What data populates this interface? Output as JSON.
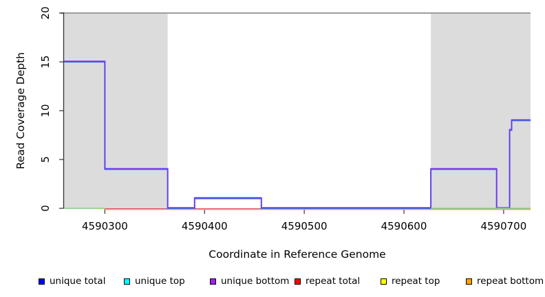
{
  "title_labels": {
    "y_axis": "Read Coverage Depth",
    "x_axis": "Coordinate in Reference Genome"
  },
  "chart_data": {
    "type": "line",
    "subtype": "step-coverage",
    "title": "",
    "xlabel": "Coordinate in Reference Genome",
    "ylabel": "Read Coverage Depth",
    "xlim": [
      4590259,
      4590727
    ],
    "ylim": [
      0,
      20
    ],
    "x_ticks": [
      4590300,
      4590400,
      4590500,
      4590600,
      4590700
    ],
    "y_ticks": [
      0,
      5,
      10,
      15,
      20
    ],
    "grid": false,
    "legend_position": "bottom",
    "shaded_regions": [
      {
        "name": "left-gray-region",
        "x0": 4590259,
        "x1": 4590363,
        "color": "#dcdcdc"
      },
      {
        "name": "right-gray-region",
        "x0": 4590627,
        "x1": 4590727,
        "color": "#dcdcdc"
      }
    ],
    "series": [
      {
        "name": "repeat bottom",
        "color": "#f0a030",
        "points": [
          [
            4590300,
            0
          ],
          [
            4590727,
            0
          ]
        ]
      },
      {
        "name": "repeat top",
        "color": "#ece23a",
        "points": [
          [
            4590300,
            0
          ],
          [
            4590727,
            0
          ]
        ]
      },
      {
        "name": "repeat total",
        "color": "#e04868",
        "points": [
          [
            4590300,
            0
          ],
          [
            4590727,
            0
          ]
        ]
      },
      {
        "name": "unique top",
        "color": "#63cdf0",
        "points": [
          [
            4590259,
            0
          ],
          [
            4590390,
            0
          ],
          [
            4590390,
            1
          ],
          [
            4590457,
            1
          ],
          [
            4590457,
            0
          ],
          [
            4590727,
            0
          ]
        ]
      },
      {
        "name": "unique total",
        "color": "#3b6fe8",
        "points": [
          [
            4590259,
            15
          ],
          [
            4590300,
            15
          ],
          [
            4590300,
            4
          ],
          [
            4590363,
            4
          ],
          [
            4590363,
            0
          ],
          [
            4590390,
            0
          ],
          [
            4590390,
            1
          ],
          [
            4590457,
            1
          ],
          [
            4590457,
            0
          ],
          [
            4590627,
            0
          ],
          [
            4590627,
            4
          ],
          [
            4590693,
            4
          ],
          [
            4590693,
            0
          ],
          [
            4590706,
            0
          ],
          [
            4590706,
            8
          ],
          [
            4590708,
            8
          ],
          [
            4590708,
            9
          ],
          [
            4590727,
            9
          ]
        ]
      },
      {
        "name": "unique bottom",
        "color": "#7433ea",
        "points": [
          [
            4590259,
            15
          ],
          [
            4590300,
            15
          ],
          [
            4590300,
            4
          ],
          [
            4590363,
            4
          ],
          [
            4590363,
            0
          ],
          [
            4590390,
            0
          ],
          [
            4590390,
            1
          ],
          [
            4590457,
            1
          ],
          [
            4590457,
            0
          ],
          [
            4590627,
            0
          ],
          [
            4590627,
            4
          ],
          [
            4590693,
            4
          ],
          [
            4590693,
            0
          ],
          [
            4590706,
            0
          ],
          [
            4590706,
            8
          ],
          [
            4590708,
            8
          ],
          [
            4590708,
            9
          ],
          [
            4590727,
            9
          ]
        ]
      },
      {
        "name": "region marker (green)",
        "color": "#8fd08f",
        "points_segments": [
          [
            [
              4590259,
              0
            ],
            [
              4590300,
              0
            ]
          ],
          [
            [
              4590627,
              0
            ],
            [
              4590727,
              0
            ]
          ]
        ]
      }
    ]
  },
  "legend": {
    "items": [
      {
        "label": "unique total",
        "swatch_color": "#0000ff"
      },
      {
        "label": "unique top",
        "swatch_color": "#00ffff"
      },
      {
        "label": "unique bottom",
        "swatch_color": "#a020f0"
      },
      {
        "label": "repeat total",
        "swatch_color": "#ff0000"
      },
      {
        "label": "repeat top",
        "swatch_color": "#ffff00"
      },
      {
        "label": "repeat bottom",
        "swatch_color": "#ffa500"
      }
    ]
  }
}
